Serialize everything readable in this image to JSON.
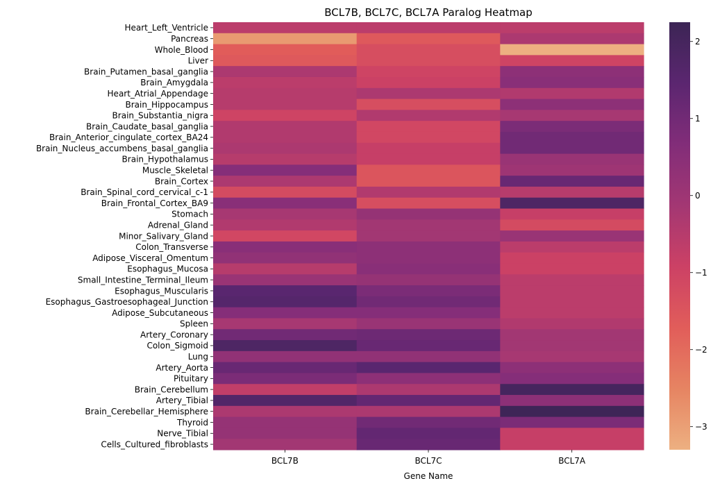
{
  "chart_data": {
    "type": "heatmap",
    "title": "BCL7B, BCL7C, BCL7A Paralog Heatmap",
    "xlabel": "Gene Name",
    "ylabel": "",
    "columns": [
      "BCL7B",
      "BCL7C",
      "BCL7A"
    ],
    "rows": [
      "Heart_Left_Ventricle",
      "Pancreas",
      "Whole_Blood",
      "Liver",
      "Brain_Putamen_basal_ganglia",
      "Brain_Amygdala",
      "Heart_Atrial_Appendage",
      "Brain_Hippocampus",
      "Brain_Substantia_nigra",
      "Brain_Caudate_basal_ganglia",
      "Brain_Anterior_cingulate_cortex_BA24",
      "Brain_Nucleus_accumbens_basal_ganglia",
      "Brain_Hypothalamus",
      "Muscle_Skeletal",
      "Brain_Cortex",
      "Brain_Spinal_cord_cervical_c-1",
      "Brain_Frontal_Cortex_BA9",
      "Stomach",
      "Adrenal_Gland",
      "Minor_Salivary_Gland",
      "Colon_Transverse",
      "Adipose_Visceral_Omentum",
      "Esophagus_Mucosa",
      "Small_Intestine_Terminal_Ileum",
      "Esophagus_Muscularis",
      "Esophagus_Gastroesophageal_Junction",
      "Adipose_Subcutaneous",
      "Spleen",
      "Artery_Coronary",
      "Colon_Sigmoid",
      "Lung",
      "Artery_Aorta",
      "Pituitary",
      "Brain_Cerebellum",
      "Artery_Tibial",
      "Brain_Cerebellar_Hemisphere",
      "Thyroid",
      "Nerve_Tibial",
      "Cells_Cultured_fibroblasts"
    ],
    "values": [
      [
        -0.6,
        -0.6,
        -0.6
      ],
      [
        -2.9,
        -1.6,
        -0.3
      ],
      [
        -1.7,
        -1.3,
        -3.3
      ],
      [
        -1.6,
        -1.3,
        -1.0
      ],
      [
        -0.3,
        -1.0,
        0.4
      ],
      [
        -0.6,
        -0.9,
        0.5
      ],
      [
        -0.5,
        -0.3,
        -0.4
      ],
      [
        -0.5,
        -1.3,
        0.4
      ],
      [
        -1.0,
        -0.4,
        -0.2
      ],
      [
        -0.4,
        -1.1,
        0.8
      ],
      [
        -0.4,
        -1.1,
        1.0
      ],
      [
        -0.3,
        -0.8,
        1.0
      ],
      [
        -0.5,
        -0.8,
        0.1
      ],
      [
        0.6,
        -1.5,
        0.0
      ],
      [
        -0.3,
        -1.5,
        1.2
      ],
      [
        -1.2,
        -0.4,
        -0.5
      ],
      [
        0.5,
        -1.3,
        1.8
      ],
      [
        -0.2,
        0.2,
        -0.8
      ],
      [
        -0.4,
        -0.1,
        -1.2
      ],
      [
        -1.1,
        -0.1,
        0.1
      ],
      [
        0.5,
        0.4,
        -0.6
      ],
      [
        0.3,
        0.4,
        -0.9
      ],
      [
        -0.5,
        0.5,
        -0.9
      ],
      [
        0.1,
        0.2,
        -0.6
      ],
      [
        1.5,
        0.8,
        -0.6
      ],
      [
        1.6,
        1.0,
        -0.6
      ],
      [
        0.6,
        0.6,
        -0.6
      ],
      [
        -0.2,
        0.1,
        -0.4
      ],
      [
        1.0,
        1.1,
        -0.1
      ],
      [
        1.8,
        1.2,
        -0.1
      ],
      [
        0.3,
        0.3,
        -0.2
      ],
      [
        1.2,
        1.5,
        0.4
      ],
      [
        0.8,
        0.4,
        0.6
      ],
      [
        -0.7,
        -0.3,
        2.0
      ],
      [
        1.7,
        1.3,
        0.4
      ],
      [
        -0.3,
        -0.3,
        2.2
      ],
      [
        0.2,
        1.0,
        0.8
      ],
      [
        0.2,
        1.3,
        -0.8
      ],
      [
        -0.1,
        1.2,
        -0.8
      ]
    ],
    "colorbar": {
      "min": -3.3,
      "max": 2.25,
      "ticks": [
        2,
        1,
        0,
        -1,
        -2,
        -3
      ],
      "tick_labels": [
        "2",
        "1",
        "0",
        "−1",
        "−2",
        "−3"
      ]
    },
    "colormap": [
      "#edb081",
      "#e68462",
      "#e15d5a",
      "#cc4165",
      "#a33773",
      "#822d79",
      "#5b2670",
      "#3c2555"
    ],
    "legend": "colorbar-right"
  }
}
